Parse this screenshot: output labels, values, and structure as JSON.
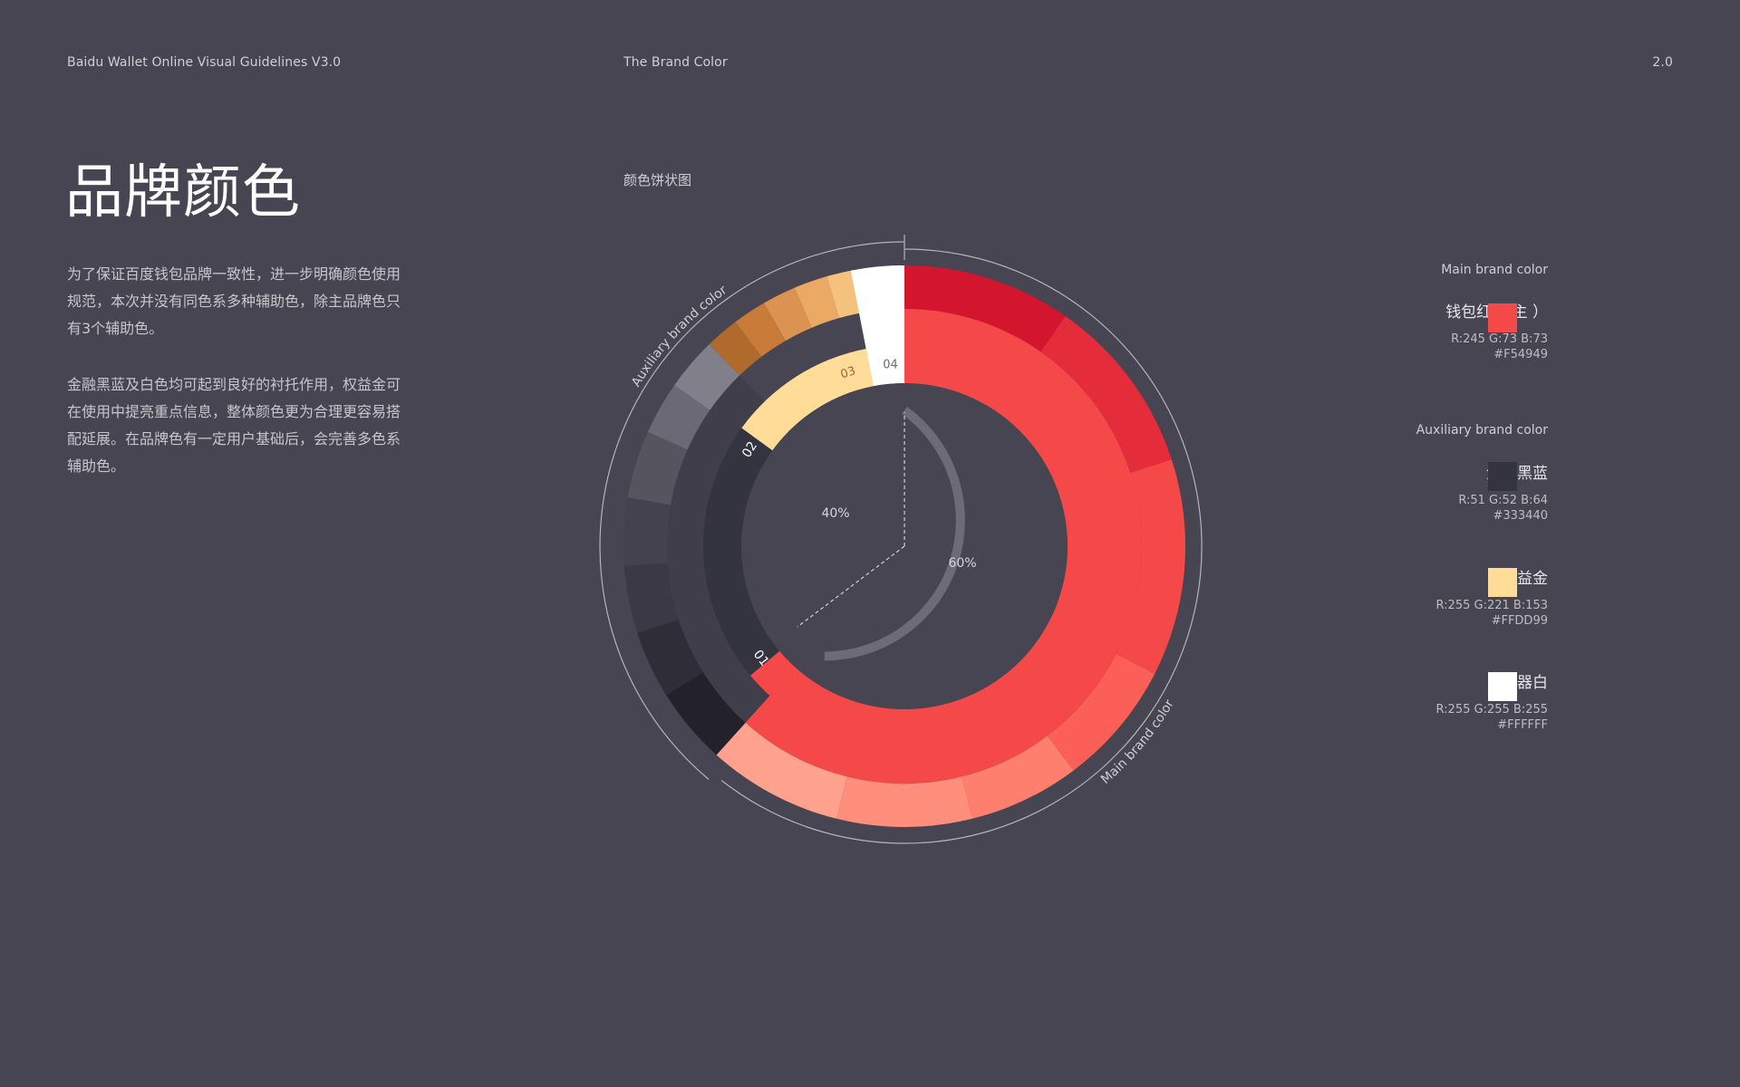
{
  "header": {
    "left": "Baidu Wallet Online Visual Guidelines V3.0",
    "center": "The Brand Color",
    "right": "2.0"
  },
  "title": "品牌颜色",
  "paragraphs": [
    "为了保证百度钱包品牌一致性，进一步明确颜色使用规范，本次并没有同色系多种辅助色，除主品牌色只有3个辅助色。",
    "金融黑蓝及白色均可起到良好的衬托作用，权益金可在使用中提亮重点信息，整体颜色更为合理更容易搭配延展。在品牌色有一定用户基础后，会完善多色系辅助色。"
  ],
  "chart_label": "颜色饼状图",
  "chart_data": {
    "type": "pie",
    "center_split": [
      {
        "label": "40%",
        "value": 40
      },
      {
        "label": "60%",
        "value": 60
      }
    ],
    "ring_labels": [
      "01",
      "02",
      "03",
      "04"
    ],
    "arc_labels": {
      "auxiliary": "Auxiliary brand color",
      "main": "Main brand color"
    }
  },
  "colors": {
    "background": "#464551",
    "brand_red": "#F54949",
    "finance_blue": "#333440",
    "gold": "#FFDD99",
    "white": "#FFFFFF"
  },
  "legend": {
    "main_heading": "Main brand color",
    "aux_heading": "Auxiliary brand color",
    "entries": [
      {
        "name": "钱包红（ 主 ）",
        "rgb": "R:245 G:73 B:73",
        "hex": "#F54949",
        "color": "#F54949"
      },
      {
        "name": "金融黑蓝",
        "rgb": "R:51 G:52 B:64",
        "hex": "#333440",
        "color": "#333440"
      },
      {
        "name": "权益金",
        "rgb": "R:255 G:221 B:153",
        "hex": "#FFDD99",
        "color": "#FFDD99"
      },
      {
        "name": "容器白",
        "rgb": "R:255 G:255 B:255",
        "hex": "#FFFFFF",
        "color": "#FFFFFF"
      }
    ]
  }
}
